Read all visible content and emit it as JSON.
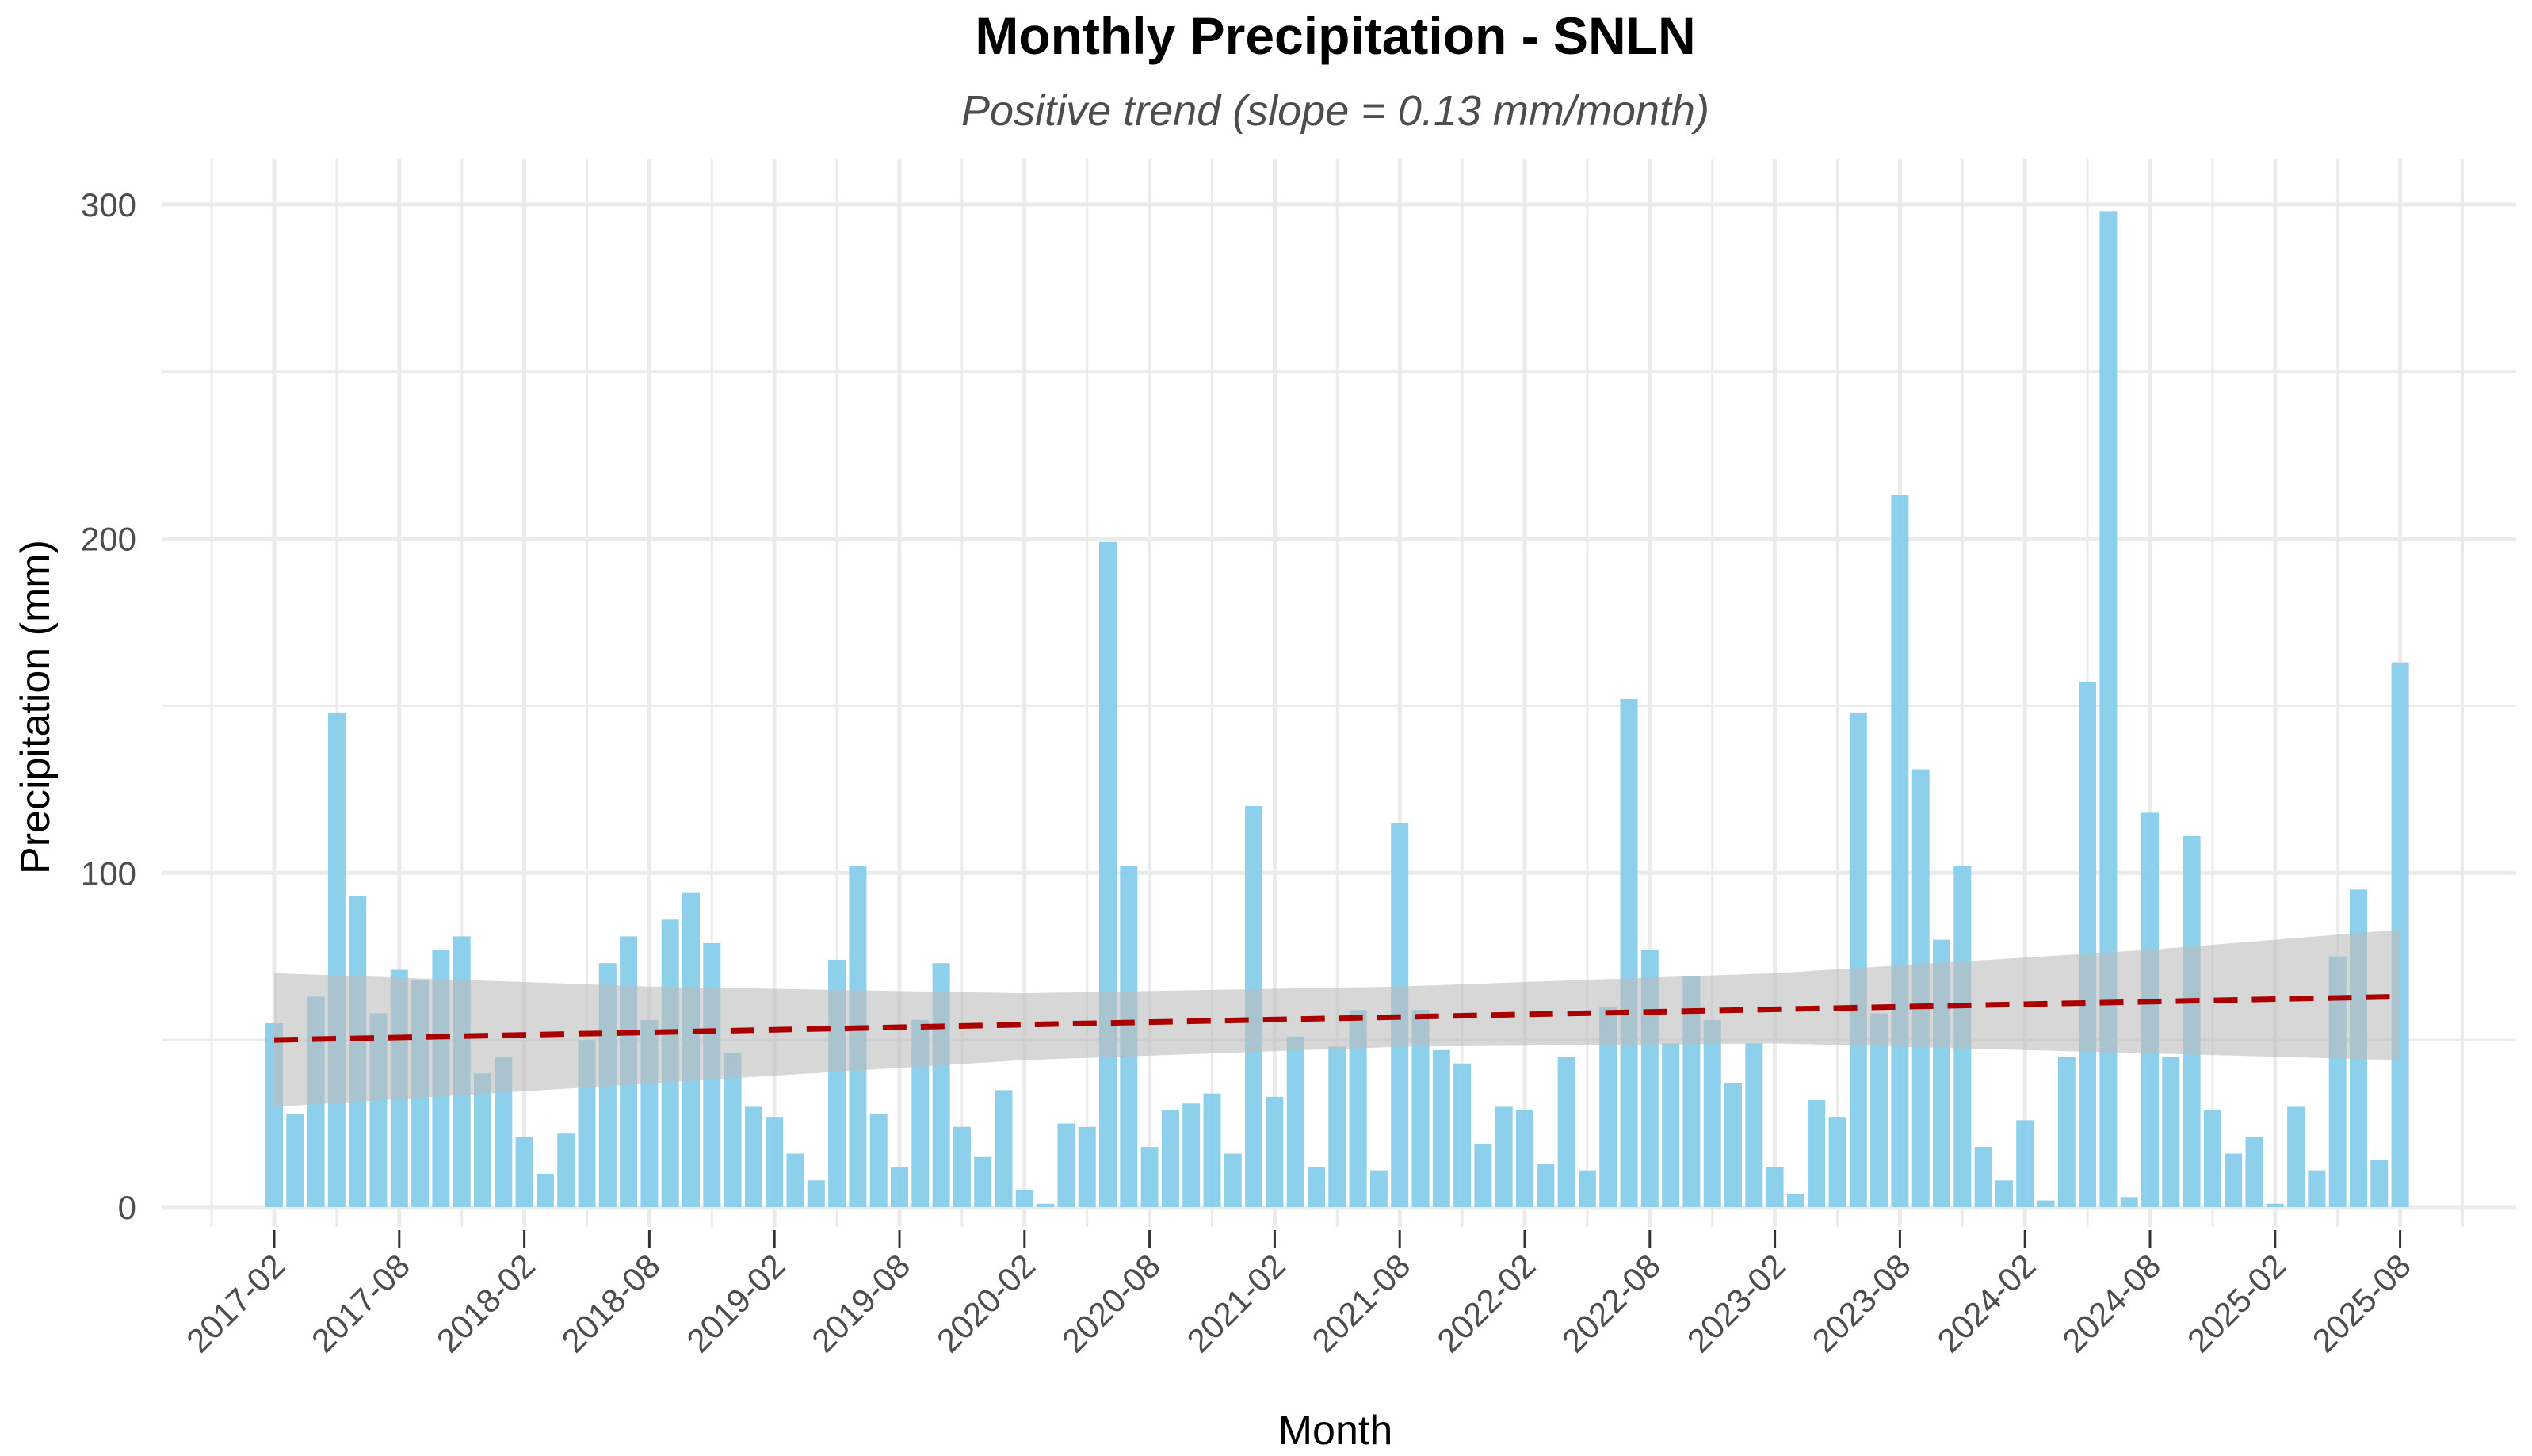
{
  "chart_data": {
    "type": "bar",
    "title": "Monthly Precipitation - SNLN",
    "subtitle": "Positive trend (slope = 0.13 mm/month)",
    "xlabel": "Month",
    "ylabel": "Precipitation (mm)",
    "ylim": [
      0,
      300
    ],
    "y_ticks": [
      0,
      100,
      200,
      300
    ],
    "x_ticks": [
      "2017-02",
      "2017-08",
      "2018-02",
      "2018-08",
      "2019-02",
      "2019-08",
      "2020-02",
      "2020-08",
      "2021-02",
      "2021-08",
      "2022-02",
      "2022-08",
      "2023-02",
      "2023-08",
      "2024-02",
      "2024-08",
      "2025-02",
      "2025-08"
    ],
    "grid": true,
    "bar_color": "#87CEEB",
    "trend_color": "#AA0000",
    "band_color": "#BDBDBD",
    "categories": [
      "2017-02",
      "2017-03",
      "2017-04",
      "2017-05",
      "2017-06",
      "2017-07",
      "2017-08",
      "2017-09",
      "2017-10",
      "2017-11",
      "2017-12",
      "2018-01",
      "2018-02",
      "2018-03",
      "2018-04",
      "2018-05",
      "2018-06",
      "2018-07",
      "2018-08",
      "2018-09",
      "2018-10",
      "2018-11",
      "2018-12",
      "2019-01",
      "2019-02",
      "2019-03",
      "2019-04",
      "2019-05",
      "2019-06",
      "2019-07",
      "2019-08",
      "2019-09",
      "2019-10",
      "2019-11",
      "2019-12",
      "2020-01",
      "2020-02",
      "2020-03",
      "2020-04",
      "2020-05",
      "2020-06",
      "2020-07",
      "2020-08",
      "2020-09",
      "2020-10",
      "2020-11",
      "2020-12",
      "2021-01",
      "2021-02",
      "2021-03",
      "2021-04",
      "2021-05",
      "2021-06",
      "2021-07",
      "2021-08",
      "2021-09",
      "2021-10",
      "2021-11",
      "2021-12",
      "2022-01",
      "2022-02",
      "2022-03",
      "2022-04",
      "2022-05",
      "2022-06",
      "2022-07",
      "2022-08",
      "2022-09",
      "2022-10",
      "2022-11",
      "2022-12",
      "2023-01",
      "2023-02",
      "2023-03",
      "2023-04",
      "2023-05",
      "2023-06",
      "2023-07",
      "2023-08",
      "2023-09",
      "2023-10",
      "2023-11",
      "2023-12",
      "2024-01",
      "2024-02",
      "2024-03",
      "2024-04",
      "2024-05",
      "2024-06",
      "2024-07",
      "2024-08",
      "2024-09",
      "2024-10",
      "2024-11",
      "2024-12",
      "2025-01",
      "2025-02",
      "2025-03",
      "2025-04",
      "2025-05",
      "2025-06",
      "2025-07",
      "2025-08"
    ],
    "series": [
      {
        "values": [
          55,
          28,
          63,
          148,
          93,
          58,
          71,
          68,
          77,
          81,
          40,
          45,
          21,
          10,
          22,
          50,
          73,
          81,
          56,
          86,
          94,
          79,
          46,
          30,
          27,
          16,
          8,
          74,
          102,
          28,
          12,
          56,
          73,
          24,
          15,
          35,
          5,
          1,
          25,
          24,
          199,
          102,
          18,
          29,
          31,
          34,
          16,
          120,
          33,
          51,
          12,
          48,
          59,
          11,
          115,
          59,
          47,
          43,
          19,
          30,
          29,
          13,
          45,
          11,
          60,
          152,
          77,
          49,
          69,
          56,
          37,
          49,
          12,
          4,
          32,
          27,
          148,
          58,
          213,
          131,
          80,
          102,
          18,
          8,
          26,
          2,
          45,
          157,
          298,
          3,
          118,
          45,
          111,
          29,
          16,
          21,
          1,
          30,
          11,
          75,
          95,
          14,
          163
        ]
      }
    ],
    "trend": {
      "start": [
        "2017-02",
        50
      ],
      "end": [
        "2025-08",
        63
      ]
    },
    "confidence_band": {
      "x": [
        "2017-02",
        "2018-08",
        "2020-02",
        "2021-08",
        "2023-02",
        "2024-08",
        "2025-08"
      ],
      "lower": [
        30,
        37,
        44,
        48,
        49,
        46,
        44
      ],
      "upper": [
        70,
        66,
        64,
        66,
        70,
        77,
        83
      ]
    }
  }
}
